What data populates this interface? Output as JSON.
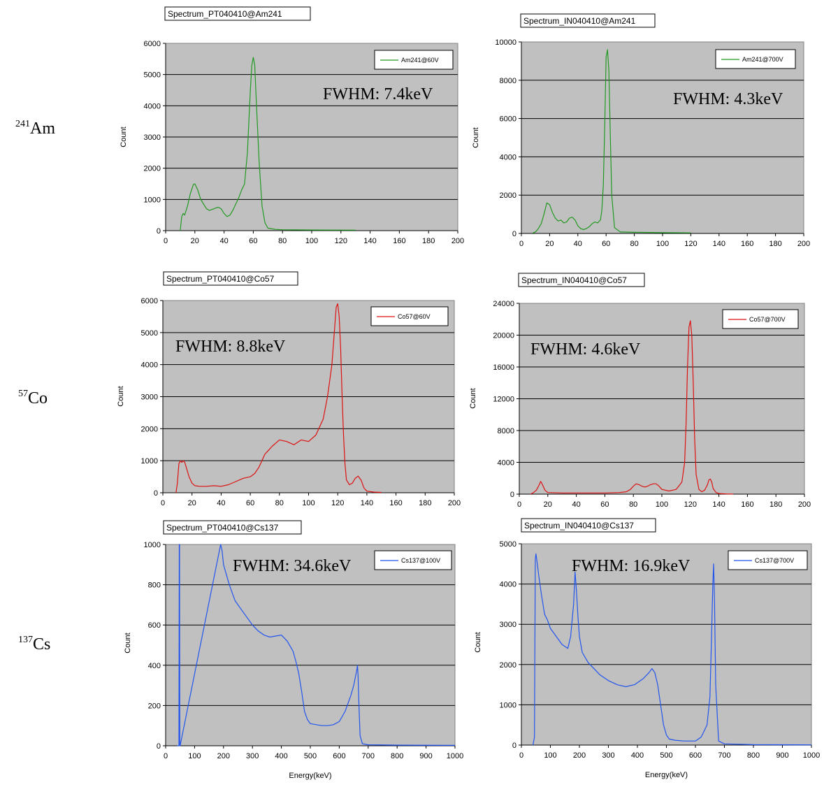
{
  "isotopes": [
    {
      "mass": "241",
      "symbol": "Am"
    },
    {
      "mass": "57",
      "symbol": "Co"
    },
    {
      "mass": "137",
      "symbol": "Cs"
    }
  ],
  "chart_data": [
    {
      "type": "line",
      "title": "Spectrum_PT040410@Am241",
      "xlabel": "",
      "ylabel": "Count",
      "xlim": [
        0,
        200
      ],
      "ylim": [
        0,
        6000
      ],
      "xticks": [
        0,
        20,
        40,
        60,
        80,
        100,
        120,
        140,
        160,
        180,
        200
      ],
      "yticks": [
        0,
        1000,
        2000,
        3000,
        4000,
        5000,
        6000
      ],
      "annotation": "FWHM: 7.4keV",
      "grid": "horizontal",
      "legend": "top-right",
      "color": "#229922",
      "series": [
        {
          "name": "Am241@60V",
          "x": [
            10,
            11,
            12,
            13,
            15,
            17,
            19,
            20,
            22,
            24,
            26,
            28,
            30,
            32,
            34,
            36,
            38,
            40,
            42,
            44,
            46,
            48,
            50,
            52,
            54,
            56,
            58,
            59,
            60,
            61,
            62,
            64,
            66,
            68,
            70,
            75,
            80,
            100,
            130
          ],
          "y": [
            0,
            450,
            550,
            500,
            800,
            1200,
            1480,
            1500,
            1300,
            1000,
            850,
            700,
            650,
            680,
            720,
            750,
            700,
            550,
            450,
            500,
            650,
            850,
            1050,
            1300,
            1500,
            2500,
            4500,
            5300,
            5550,
            5300,
            4200,
            2200,
            800,
            250,
            80,
            40,
            30,
            20,
            15
          ]
        }
      ]
    },
    {
      "type": "line",
      "title": "Spectrum_IN040410@Am241",
      "xlabel": "",
      "ylabel": "Count",
      "xlim": [
        0,
        200
      ],
      "ylim": [
        0,
        10000
      ],
      "xticks": [
        0,
        20,
        40,
        60,
        80,
        100,
        120,
        140,
        160,
        180,
        200
      ],
      "yticks": [
        0,
        2000,
        4000,
        6000,
        8000,
        10000
      ],
      "annotation": "FWHM: 4.3keV",
      "grid": "horizontal",
      "legend": "top-right",
      "color": "#229922",
      "series": [
        {
          "name": "Am241@700V",
          "x": [
            8,
            10,
            12,
            14,
            16,
            18,
            20,
            22,
            24,
            26,
            28,
            30,
            32,
            34,
            36,
            38,
            40,
            42,
            44,
            46,
            48,
            50,
            52,
            54,
            56,
            57,
            58,
            59,
            60,
            61,
            62,
            63,
            64,
            66,
            70,
            80,
            100,
            120
          ],
          "y": [
            20,
            80,
            250,
            500,
            1000,
            1600,
            1500,
            1100,
            800,
            650,
            700,
            550,
            600,
            800,
            850,
            700,
            400,
            250,
            200,
            250,
            350,
            500,
            600,
            550,
            700,
            1200,
            2500,
            5500,
            9200,
            9600,
            8500,
            5000,
            2000,
            300,
            80,
            60,
            40,
            30
          ]
        }
      ]
    },
    {
      "type": "line",
      "title": "Spectrum_PT040410@Co57",
      "xlabel": "",
      "ylabel": "Count",
      "xlim": [
        0,
        200
      ],
      "ylim": [
        0,
        6000
      ],
      "xticks": [
        0,
        20,
        40,
        60,
        80,
        100,
        120,
        140,
        160,
        180,
        200
      ],
      "yticks": [
        0,
        1000,
        2000,
        3000,
        4000,
        5000,
        6000
      ],
      "annotation": "FWHM: 8.8keV",
      "grid": "horizontal",
      "legend": "top-right",
      "color": "#dd1111",
      "series": [
        {
          "name": "Co57@60V",
          "x": [
            9,
            10,
            11,
            12,
            13,
            14,
            15,
            16,
            18,
            20,
            22,
            25,
            30,
            35,
            40,
            45,
            50,
            55,
            60,
            63,
            66,
            70,
            75,
            80,
            85,
            90,
            95,
            100,
            105,
            110,
            113,
            116,
            118,
            119,
            120,
            121,
            122,
            123,
            124,
            125,
            126,
            128,
            130,
            132,
            134,
            136,
            138,
            140,
            145,
            150
          ],
          "y": [
            0,
            300,
            900,
            1000,
            950,
            1000,
            950,
            800,
            500,
            300,
            220,
            200,
            200,
            220,
            200,
            250,
            350,
            450,
            500,
            600,
            800,
            1200,
            1450,
            1650,
            1600,
            1500,
            1650,
            1600,
            1800,
            2300,
            3000,
            4000,
            5200,
            5800,
            5900,
            5500,
            4500,
            3000,
            1800,
            900,
            400,
            250,
            300,
            450,
            520,
            400,
            150,
            50,
            20,
            10
          ]
        }
      ]
    },
    {
      "type": "line",
      "title": "Spectrum_IN040410@Co57",
      "xlabel": "",
      "ylabel": "Count",
      "xlim": [
        0,
        200
      ],
      "ylim": [
        0,
        24000
      ],
      "xticks": [
        0,
        20,
        40,
        60,
        80,
        100,
        120,
        140,
        160,
        180,
        200
      ],
      "yticks": [
        0,
        4000,
        8000,
        12000,
        16000,
        20000,
        24000
      ],
      "annotation": "FWHM: 4.6keV",
      "grid": "horizontal",
      "legend": "top-right",
      "color": "#dd1111",
      "series": [
        {
          "name": "Co57@700V",
          "x": [
            8,
            10,
            12,
            14,
            15,
            16,
            18,
            20,
            30,
            40,
            50,
            60,
            70,
            75,
            78,
            80,
            82,
            84,
            86,
            88,
            90,
            92,
            94,
            96,
            98,
            100,
            105,
            110,
            114,
            116,
            117,
            118,
            119,
            120,
            121,
            122,
            123,
            124,
            126,
            128,
            130,
            132,
            133,
            134,
            135,
            136,
            138,
            140,
            145,
            150
          ],
          "y": [
            0,
            200,
            500,
            1200,
            1600,
            1300,
            500,
            200,
            150,
            150,
            150,
            150,
            200,
            300,
            600,
            1000,
            1300,
            1200,
            1000,
            900,
            1000,
            1200,
            1300,
            1300,
            1000,
            600,
            400,
            600,
            1500,
            4000,
            9000,
            16000,
            21000,
            21800,
            20000,
            14000,
            7000,
            2500,
            600,
            300,
            500,
            1200,
            1800,
            1900,
            1500,
            700,
            200,
            80,
            30,
            10
          ]
        }
      ]
    },
    {
      "type": "line",
      "title": "Spectrum_PT040410@Cs137",
      "xlabel": "Energy(keV)",
      "ylabel": "Count",
      "xlim": [
        0,
        1000
      ],
      "ylim": [
        0,
        1000
      ],
      "xticks": [
        0,
        100,
        200,
        300,
        400,
        500,
        600,
        700,
        800,
        900,
        1000
      ],
      "yticks": [
        0,
        200,
        400,
        600,
        800,
        1000
      ],
      "annotation": "FWHM: 34.6keV",
      "grid": "horizontal",
      "legend": "top-right",
      "color": "#2255ee",
      "series": [
        {
          "name": "Cs137@100V",
          "x": [
            40,
            46,
            47,
            48,
            49,
            50,
            190,
            195,
            200,
            210,
            220,
            230,
            240,
            250,
            260,
            280,
            300,
            320,
            340,
            360,
            380,
            400,
            420,
            440,
            450,
            460,
            470,
            480,
            490,
            500,
            520,
            540,
            560,
            580,
            600,
            620,
            640,
            650,
            660,
            663,
            665,
            668,
            672,
            680,
            700,
            800,
            1000
          ],
          "y": [
            0,
            0,
            1000,
            1000,
            0,
            0,
            1000,
            970,
            900,
            850,
            800,
            760,
            720,
            700,
            680,
            640,
            600,
            570,
            550,
            540,
            545,
            550,
            520,
            470,
            420,
            360,
            270,
            170,
            130,
            110,
            105,
            100,
            100,
            105,
            120,
            170,
            250,
            300,
            370,
            400,
            350,
            200,
            50,
            10,
            5,
            3,
            2
          ]
        }
      ]
    },
    {
      "type": "line",
      "title": "Spectrum_IN040410@Cs137",
      "xlabel": "Energy(keV)",
      "ylabel": "Count",
      "xlim": [
        0,
        1000
      ],
      "ylim": [
        0,
        5000
      ],
      "xticks": [
        0,
        100,
        200,
        300,
        400,
        500,
        600,
        700,
        800,
        900,
        1000
      ],
      "yticks": [
        0,
        1000,
        2000,
        3000,
        4000,
        5000
      ],
      "annotation": "FWHM: 16.9keV",
      "grid": "horizontal",
      "legend": "top-right",
      "color": "#2255ee",
      "series": [
        {
          "name": "Cs137@700V",
          "x": [
            40,
            45,
            48,
            50,
            55,
            60,
            70,
            80,
            90,
            100,
            120,
            140,
            160,
            170,
            180,
            185,
            190,
            195,
            200,
            210,
            230,
            250,
            270,
            300,
            330,
            360,
            390,
            420,
            440,
            450,
            460,
            470,
            480,
            490,
            500,
            510,
            530,
            560,
            600,
            620,
            640,
            650,
            655,
            660,
            663,
            666,
            670,
            680,
            700,
            800,
            1000
          ],
          "y": [
            0,
            200,
            4600,
            4750,
            4500,
            4200,
            3700,
            3250,
            3100,
            2900,
            2700,
            2500,
            2400,
            2700,
            3500,
            4300,
            3800,
            3200,
            2700,
            2300,
            2050,
            1900,
            1750,
            1600,
            1500,
            1450,
            1500,
            1650,
            1800,
            1900,
            1800,
            1500,
            1000,
            500,
            250,
            150,
            120,
            100,
            100,
            200,
            500,
            1200,
            2500,
            4000,
            4500,
            3500,
            1500,
            100,
            30,
            10,
            5
          ]
        }
      ]
    }
  ]
}
